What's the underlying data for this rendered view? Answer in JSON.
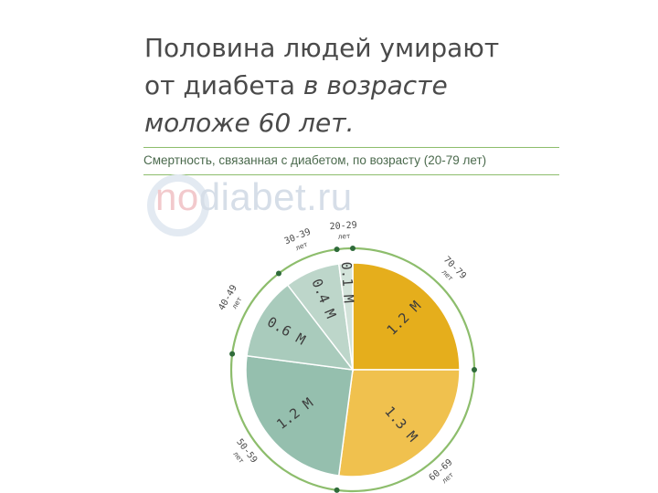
{
  "title": {
    "line1_a": "Половина людей умирают",
    "line2_a": "от диабета ",
    "line2_b": "в возрасте",
    "line3": "моложе 60 лет."
  },
  "subtitle": "Смертность, связанная с диабетом, по возрасту (20-79 лет)",
  "watermark": {
    "part1": "no",
    "part2": "diabet.ru"
  },
  "chart_data": {
    "type": "pie",
    "title": "Смертность, связанная с диабетом, по возрасту (20-79 лет)",
    "unit": "М",
    "slices": [
      {
        "age": "70-79",
        "age_unit": "лет",
        "value": 1.2,
        "label": "1.2 М",
        "color": "#e5ae1c"
      },
      {
        "age": "60-69",
        "age_unit": "лет",
        "value": 1.3,
        "label": "1.3 М",
        "color": "#f0c14e"
      },
      {
        "age": "50-59",
        "age_unit": "лет",
        "value": 1.2,
        "label": "1.2 М",
        "color": "#95bfae"
      },
      {
        "age": "40-49",
        "age_unit": "лет",
        "value": 0.6,
        "label": "0.6 М",
        "color": "#a9cbbc"
      },
      {
        "age": "30-39",
        "age_unit": "лет",
        "value": 0.4,
        "label": "0.4 М",
        "color": "#bdd6ca"
      },
      {
        "age": "20-29",
        "age_unit": "лет",
        "value": 0.1,
        "label": "0.1 М",
        "color": "#d3e3da"
      }
    ],
    "ring_color": "#8dbd6c",
    "label_color": "#3d3d3d",
    "dot_color": "#2f6b3a"
  }
}
